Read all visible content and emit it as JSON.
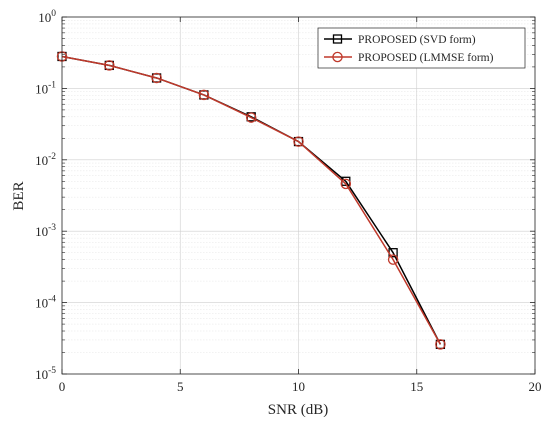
{
  "chart_data": {
    "type": "line",
    "xlabel": "SNR (dB)",
    "ylabel": "BER",
    "xlim": [
      0,
      20
    ],
    "ylim": [
      1e-05,
      1
    ],
    "y_scale": "log",
    "grid": true,
    "minor_grid": true,
    "legend_position": "top-right",
    "x_ticks": [
      0,
      5,
      10,
      15,
      20
    ],
    "x_tick_labels": [
      "0",
      "5",
      "10",
      "15",
      "20"
    ],
    "y_ticks": [
      1,
      0.1,
      0.01,
      0.001,
      0.0001,
      1e-05
    ],
    "y_tick_labels": [
      {
        "base": "10",
        "exp": "0"
      },
      {
        "base": "10",
        "exp": "-1"
      },
      {
        "base": "10",
        "exp": "-2"
      },
      {
        "base": "10",
        "exp": "-3"
      },
      {
        "base": "10",
        "exp": "-4"
      },
      {
        "base": "10",
        "exp": "-5"
      }
    ],
    "series": [
      {
        "name": "PROPOSED (SVD form)",
        "color": "#000000",
        "marker": "square",
        "x": [
          0,
          2,
          4,
          6,
          8,
          10,
          12,
          14,
          16
        ],
        "values": [
          0.28,
          0.21,
          0.14,
          0.081,
          0.04,
          0.018,
          0.005,
          0.0005,
          2.6e-05
        ]
      },
      {
        "name": "PROPOSED (LMMSE form)",
        "color": "#c0392b",
        "marker": "circle",
        "x": [
          0,
          2,
          4,
          6,
          8,
          10,
          12,
          14,
          16
        ],
        "values": [
          0.28,
          0.21,
          0.14,
          0.081,
          0.039,
          0.018,
          0.0046,
          0.0004,
          2.6e-05
        ]
      }
    ]
  }
}
